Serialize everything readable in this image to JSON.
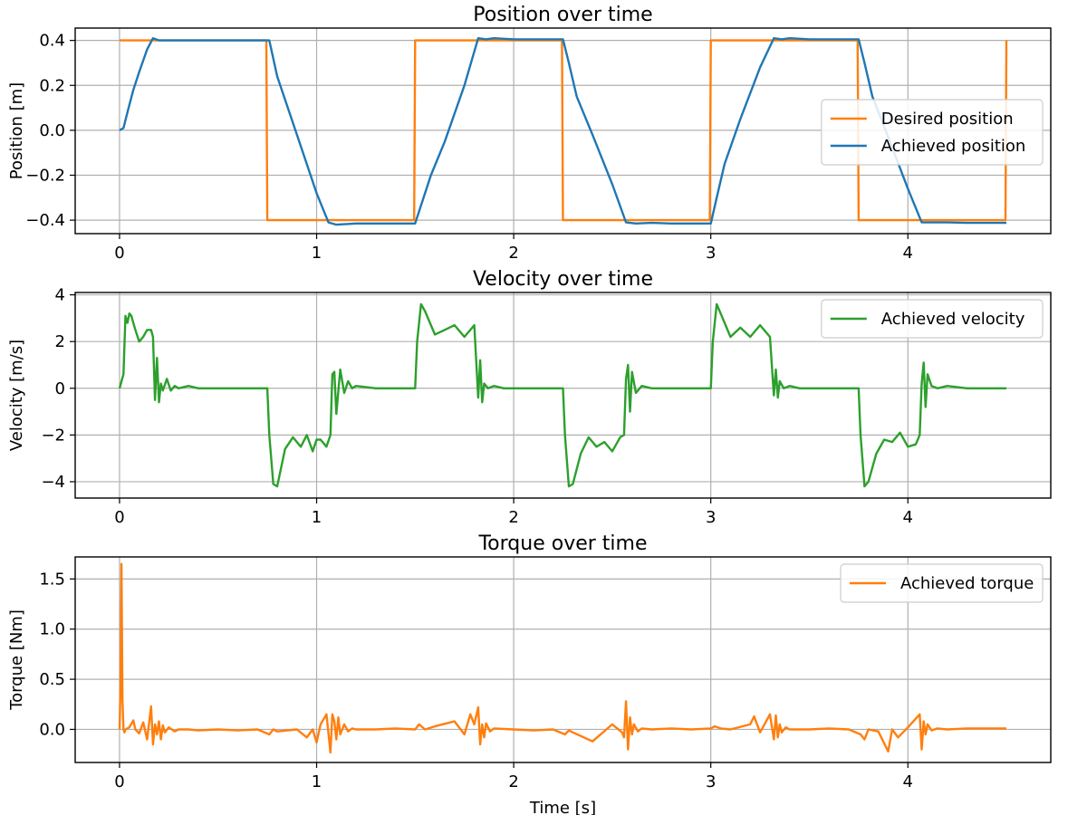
{
  "figure": {
    "colors": {
      "orange": "#ff7f0e",
      "blue": "#1f77b4",
      "green": "#2ca02c",
      "grid": "#b0b0b0"
    }
  },
  "chart_data": [
    {
      "id": "position",
      "type": "line",
      "title": "Position over time",
      "xlabel": "",
      "ylabel": "Position [m]",
      "xlim": [
        -0.225,
        4.725
      ],
      "ylim": [
        -0.46,
        0.455
      ],
      "xticks": [
        0,
        1,
        2,
        3,
        4
      ],
      "xtick_labels": [
        "0",
        "1",
        "2",
        "3",
        "4"
      ],
      "yticks": [
        0.4,
        0.2,
        0.0,
        -0.2,
        -0.4
      ],
      "ytick_labels": [
        "0.4",
        "0.2",
        "0.0",
        "−0.2",
        "−0.4"
      ],
      "grid": true,
      "legend": "center-right",
      "series": [
        {
          "name": "Desired position",
          "color": "#ff7f0e",
          "x": [
            0,
            0.745,
            0.75,
            1.495,
            1.5,
            2.245,
            2.25,
            2.995,
            3.0,
            3.745,
            3.75,
            4.495,
            4.5
          ],
          "y": [
            0.4,
            0.4,
            -0.4,
            -0.4,
            0.4,
            0.4,
            -0.4,
            -0.4,
            0.4,
            0.4,
            -0.4,
            -0.4,
            0.4
          ]
        },
        {
          "name": "Achieved position",
          "color": "#1f77b4",
          "x": [
            0,
            0.02,
            0.04,
            0.07,
            0.1,
            0.14,
            0.17,
            0.2,
            0.3,
            0.5,
            0.76,
            0.8,
            0.9,
            1.0,
            1.06,
            1.1,
            1.2,
            1.3,
            1.5,
            1.52,
            1.58,
            1.65,
            1.75,
            1.82,
            1.86,
            1.9,
            2.0,
            2.1,
            2.25,
            2.28,
            2.32,
            2.4,
            2.5,
            2.57,
            2.62,
            2.7,
            2.8,
            3.0,
            3.03,
            3.07,
            3.15,
            3.25,
            3.32,
            3.36,
            3.4,
            3.5,
            3.6,
            3.75,
            3.78,
            3.82,
            3.9,
            4.0,
            4.07,
            4.12,
            4.2,
            4.3,
            4.5
          ],
          "y": [
            0.0,
            0.01,
            0.08,
            0.18,
            0.26,
            0.36,
            0.41,
            0.4,
            0.4,
            0.4,
            0.4,
            0.24,
            -0.02,
            -0.28,
            -0.41,
            -0.42,
            -0.415,
            -0.415,
            -0.415,
            -0.36,
            -0.2,
            -0.05,
            0.2,
            0.41,
            0.405,
            0.41,
            0.405,
            0.405,
            0.405,
            0.3,
            0.15,
            -0.02,
            -0.24,
            -0.41,
            -0.415,
            -0.412,
            -0.415,
            -0.415,
            -0.3,
            -0.15,
            0.05,
            0.28,
            0.41,
            0.405,
            0.41,
            0.405,
            0.405,
            0.405,
            0.3,
            0.15,
            -0.03,
            -0.26,
            -0.41,
            -0.41,
            -0.41,
            -0.412,
            -0.412
          ]
        }
      ]
    },
    {
      "id": "velocity",
      "type": "line",
      "title": "Velocity over time",
      "xlabel": "",
      "ylabel": "Velocity [m/s]",
      "xlim": [
        -0.225,
        4.725
      ],
      "ylim": [
        -4.7,
        4.1
      ],
      "xticks": [
        0,
        1,
        2,
        3,
        4
      ],
      "xtick_labels": [
        "0",
        "1",
        "2",
        "3",
        "4"
      ],
      "yticks": [
        4,
        2,
        0,
        -2,
        -4
      ],
      "ytick_labels": [
        "4",
        "2",
        "0",
        "−2",
        "−4"
      ],
      "grid": true,
      "legend": "top-right",
      "series": [
        {
          "name": "Achieved velocity",
          "color": "#2ca02c",
          "x": [
            0,
            0.02,
            0.03,
            0.04,
            0.05,
            0.06,
            0.08,
            0.1,
            0.12,
            0.14,
            0.16,
            0.17,
            0.18,
            0.19,
            0.2,
            0.21,
            0.22,
            0.24,
            0.26,
            0.28,
            0.3,
            0.35,
            0.4,
            0.5,
            0.6,
            0.7,
            0.75,
            0.76,
            0.78,
            0.8,
            0.84,
            0.88,
            0.92,
            0.95,
            0.98,
            1.0,
            1.02,
            1.05,
            1.07,
            1.08,
            1.09,
            1.1,
            1.12,
            1.14,
            1.16,
            1.18,
            1.2,
            1.3,
            1.4,
            1.5,
            1.51,
            1.53,
            1.55,
            1.6,
            1.65,
            1.7,
            1.75,
            1.8,
            1.82,
            1.83,
            1.84,
            1.85,
            1.87,
            1.9,
            1.95,
            2.0,
            2.1,
            2.2,
            2.25,
            2.26,
            2.28,
            2.3,
            2.34,
            2.38,
            2.42,
            2.46,
            2.5,
            2.54,
            2.56,
            2.57,
            2.58,
            2.59,
            2.6,
            2.62,
            2.65,
            2.7,
            2.8,
            2.9,
            3.0,
            3.01,
            3.03,
            3.05,
            3.1,
            3.15,
            3.2,
            3.25,
            3.3,
            3.32,
            3.33,
            3.34,
            3.35,
            3.37,
            3.4,
            3.45,
            3.5,
            3.6,
            3.7,
            3.75,
            3.76,
            3.78,
            3.8,
            3.84,
            3.88,
            3.92,
            3.96,
            4.0,
            4.04,
            4.06,
            4.07,
            4.08,
            4.09,
            4.1,
            4.12,
            4.15,
            4.2,
            4.3,
            4.4,
            4.5
          ],
          "y": [
            0.0,
            0.6,
            3.1,
            2.8,
            3.2,
            3.1,
            2.5,
            2.0,
            2.2,
            2.5,
            2.5,
            2.2,
            -0.5,
            1.3,
            -0.6,
            0.2,
            -0.1,
            0.4,
            -0.1,
            0.1,
            0.0,
            0.1,
            0.0,
            0.0,
            0.0,
            0.0,
            0.0,
            -2.0,
            -4.1,
            -4.2,
            -2.6,
            -2.1,
            -2.5,
            -2.0,
            -2.7,
            -2.2,
            -2.2,
            -2.5,
            -2.0,
            0.6,
            0.7,
            -1.1,
            0.8,
            -0.2,
            0.3,
            0.0,
            0.1,
            0.0,
            0.0,
            0.0,
            2.0,
            3.6,
            3.3,
            2.3,
            2.5,
            2.7,
            2.2,
            2.7,
            -0.4,
            1.2,
            -0.6,
            0.2,
            0.0,
            0.1,
            0.0,
            0.0,
            0.0,
            0.0,
            0.0,
            -2.0,
            -4.2,
            -4.1,
            -2.8,
            -2.1,
            -2.5,
            -2.3,
            -2.7,
            -2.1,
            -2.0,
            0.4,
            1.0,
            -1.0,
            0.7,
            -0.2,
            0.1,
            0.0,
            0.0,
            0.0,
            0.0,
            2.0,
            3.6,
            3.2,
            2.2,
            2.6,
            2.2,
            2.7,
            2.2,
            -0.3,
            0.8,
            -0.4,
            0.3,
            0.0,
            0.1,
            0.0,
            0.0,
            0.0,
            0.0,
            0.0,
            -2.0,
            -4.2,
            -4.0,
            -2.8,
            -2.2,
            -2.3,
            -1.9,
            -2.5,
            -2.4,
            -2.0,
            0.2,
            1.1,
            -0.8,
            0.6,
            0.1,
            0.0,
            0.1,
            0.0,
            0.0,
            0.0
          ]
        }
      ]
    },
    {
      "id": "torque",
      "type": "line",
      "title": "Torque over time",
      "xlabel": "Time [s]",
      "ylabel": "Torque [Nm]",
      "xlim": [
        -0.225,
        4.725
      ],
      "ylim": [
        -0.33,
        1.72
      ],
      "xticks": [
        0,
        1,
        2,
        3,
        4
      ],
      "xtick_labels": [
        "0",
        "1",
        "2",
        "3",
        "4"
      ],
      "yticks": [
        1.5,
        1.0,
        0.5,
        0.0
      ],
      "ytick_labels": [
        "1.5",
        "1.0",
        "0.5",
        "0.0"
      ],
      "grid": true,
      "legend": "top-right",
      "series": [
        {
          "name": "Achieved torque",
          "color": "#ff7f0e",
          "x": [
            0,
            0.005,
            0.01,
            0.015,
            0.02,
            0.025,
            0.03,
            0.05,
            0.07,
            0.08,
            0.1,
            0.12,
            0.14,
            0.16,
            0.17,
            0.18,
            0.19,
            0.2,
            0.21,
            0.22,
            0.23,
            0.25,
            0.28,
            0.3,
            0.35,
            0.4,
            0.5,
            0.6,
            0.7,
            0.76,
            0.78,
            0.8,
            0.9,
            0.95,
            0.98,
            1.0,
            1.02,
            1.05,
            1.07,
            1.08,
            1.09,
            1.1,
            1.11,
            1.12,
            1.14,
            1.16,
            1.18,
            1.2,
            1.3,
            1.4,
            1.5,
            1.52,
            1.55,
            1.6,
            1.7,
            1.75,
            1.78,
            1.8,
            1.82,
            1.83,
            1.84,
            1.85,
            1.86,
            1.88,
            1.9,
            2.0,
            2.1,
            2.2,
            2.26,
            2.28,
            2.3,
            2.4,
            2.5,
            2.55,
            2.56,
            2.57,
            2.58,
            2.59,
            2.6,
            2.61,
            2.63,
            2.65,
            2.7,
            2.8,
            2.9,
            3.0,
            3.02,
            3.05,
            3.1,
            3.2,
            3.22,
            3.25,
            3.3,
            3.32,
            3.33,
            3.34,
            3.35,
            3.36,
            3.38,
            3.4,
            3.5,
            3.6,
            3.7,
            3.76,
            3.78,
            3.8,
            3.85,
            3.9,
            3.92,
            3.95,
            4.0,
            4.06,
            4.07,
            4.08,
            4.09,
            4.1,
            4.12,
            4.15,
            4.2,
            4.3,
            4.5
          ],
          "y": [
            0.0,
            0.4,
            1.65,
            0.3,
            0.0,
            -0.03,
            0.0,
            0.02,
            0.09,
            0.0,
            -0.04,
            0.07,
            -0.1,
            0.23,
            -0.15,
            0.05,
            -0.05,
            0.08,
            -0.1,
            0.04,
            -0.03,
            0.02,
            -0.02,
            0.0,
            0.0,
            -0.01,
            0.0,
            -0.01,
            0.0,
            -0.05,
            0.0,
            -0.02,
            0.0,
            -0.08,
            0.0,
            -0.13,
            0.05,
            0.15,
            -0.23,
            0.15,
            0.08,
            -0.1,
            0.12,
            -0.05,
            0.05,
            -0.02,
            0.01,
            0.0,
            0.0,
            0.01,
            0.0,
            0.05,
            0.0,
            0.03,
            0.08,
            -0.05,
            0.15,
            0.05,
            0.22,
            -0.15,
            0.05,
            -0.08,
            0.06,
            -0.02,
            0.01,
            0.0,
            -0.01,
            0.0,
            -0.05,
            -0.01,
            -0.03,
            -0.12,
            0.05,
            -0.03,
            -0.08,
            0.28,
            -0.2,
            0.12,
            -0.05,
            0.05,
            -0.02,
            0.01,
            0.0,
            0.01,
            0.0,
            0.01,
            0.03,
            0.01,
            0.0,
            0.05,
            0.13,
            -0.03,
            0.15,
            -0.1,
            0.14,
            -0.08,
            0.05,
            -0.03,
            0.02,
            0.0,
            0.0,
            0.01,
            0.0,
            -0.05,
            -0.1,
            0.0,
            -0.02,
            -0.22,
            0.0,
            -0.08,
            0.02,
            0.15,
            -0.2,
            0.08,
            -0.05,
            0.05,
            -0.01,
            0.01,
            0.0,
            0.01,
            0.01
          ]
        }
      ]
    }
  ]
}
